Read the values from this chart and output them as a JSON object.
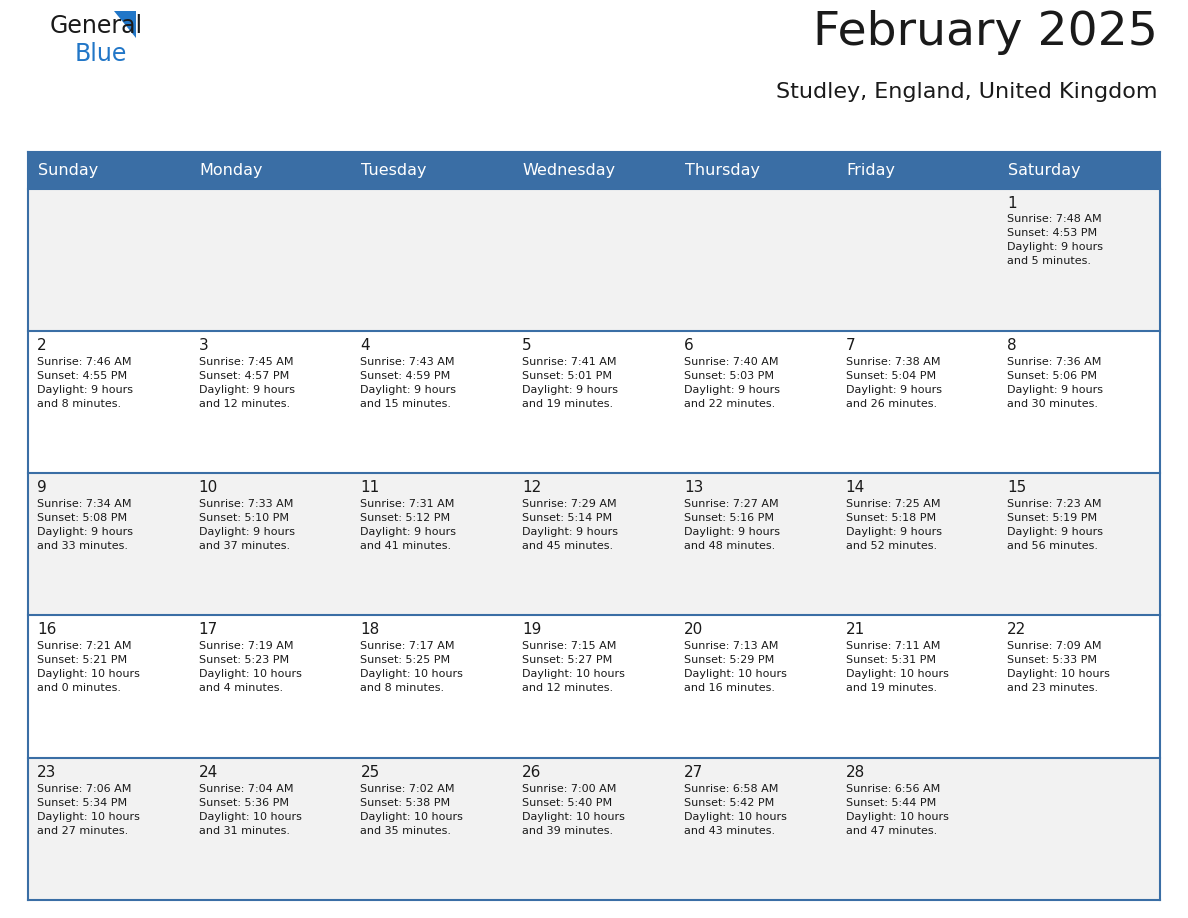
{
  "title": "February 2025",
  "subtitle": "Studley, England, United Kingdom",
  "header_bg": "#3A6EA5",
  "header_text_color": "#FFFFFF",
  "cell_bg_row0": "#F2F2F2",
  "cell_bg_row1": "#FFFFFF",
  "cell_bg_row2": "#F2F2F2",
  "cell_bg_row3": "#FFFFFF",
  "cell_bg_row4": "#F2F2F2",
  "border_color": "#3A6EA5",
  "text_color": "#1a1a1a",
  "days_of_week": [
    "Sunday",
    "Monday",
    "Tuesday",
    "Wednesday",
    "Thursday",
    "Friday",
    "Saturday"
  ],
  "calendar_data": [
    [
      {
        "day": "",
        "info": ""
      },
      {
        "day": "",
        "info": ""
      },
      {
        "day": "",
        "info": ""
      },
      {
        "day": "",
        "info": ""
      },
      {
        "day": "",
        "info": ""
      },
      {
        "day": "",
        "info": ""
      },
      {
        "day": "1",
        "info": "Sunrise: 7:48 AM\nSunset: 4:53 PM\nDaylight: 9 hours\nand 5 minutes."
      }
    ],
    [
      {
        "day": "2",
        "info": "Sunrise: 7:46 AM\nSunset: 4:55 PM\nDaylight: 9 hours\nand 8 minutes."
      },
      {
        "day": "3",
        "info": "Sunrise: 7:45 AM\nSunset: 4:57 PM\nDaylight: 9 hours\nand 12 minutes."
      },
      {
        "day": "4",
        "info": "Sunrise: 7:43 AM\nSunset: 4:59 PM\nDaylight: 9 hours\nand 15 minutes."
      },
      {
        "day": "5",
        "info": "Sunrise: 7:41 AM\nSunset: 5:01 PM\nDaylight: 9 hours\nand 19 minutes."
      },
      {
        "day": "6",
        "info": "Sunrise: 7:40 AM\nSunset: 5:03 PM\nDaylight: 9 hours\nand 22 minutes."
      },
      {
        "day": "7",
        "info": "Sunrise: 7:38 AM\nSunset: 5:04 PM\nDaylight: 9 hours\nand 26 minutes."
      },
      {
        "day": "8",
        "info": "Sunrise: 7:36 AM\nSunset: 5:06 PM\nDaylight: 9 hours\nand 30 minutes."
      }
    ],
    [
      {
        "day": "9",
        "info": "Sunrise: 7:34 AM\nSunset: 5:08 PM\nDaylight: 9 hours\nand 33 minutes."
      },
      {
        "day": "10",
        "info": "Sunrise: 7:33 AM\nSunset: 5:10 PM\nDaylight: 9 hours\nand 37 minutes."
      },
      {
        "day": "11",
        "info": "Sunrise: 7:31 AM\nSunset: 5:12 PM\nDaylight: 9 hours\nand 41 minutes."
      },
      {
        "day": "12",
        "info": "Sunrise: 7:29 AM\nSunset: 5:14 PM\nDaylight: 9 hours\nand 45 minutes."
      },
      {
        "day": "13",
        "info": "Sunrise: 7:27 AM\nSunset: 5:16 PM\nDaylight: 9 hours\nand 48 minutes."
      },
      {
        "day": "14",
        "info": "Sunrise: 7:25 AM\nSunset: 5:18 PM\nDaylight: 9 hours\nand 52 minutes."
      },
      {
        "day": "15",
        "info": "Sunrise: 7:23 AM\nSunset: 5:19 PM\nDaylight: 9 hours\nand 56 minutes."
      }
    ],
    [
      {
        "day": "16",
        "info": "Sunrise: 7:21 AM\nSunset: 5:21 PM\nDaylight: 10 hours\nand 0 minutes."
      },
      {
        "day": "17",
        "info": "Sunrise: 7:19 AM\nSunset: 5:23 PM\nDaylight: 10 hours\nand 4 minutes."
      },
      {
        "day": "18",
        "info": "Sunrise: 7:17 AM\nSunset: 5:25 PM\nDaylight: 10 hours\nand 8 minutes."
      },
      {
        "day": "19",
        "info": "Sunrise: 7:15 AM\nSunset: 5:27 PM\nDaylight: 10 hours\nand 12 minutes."
      },
      {
        "day": "20",
        "info": "Sunrise: 7:13 AM\nSunset: 5:29 PM\nDaylight: 10 hours\nand 16 minutes."
      },
      {
        "day": "21",
        "info": "Sunrise: 7:11 AM\nSunset: 5:31 PM\nDaylight: 10 hours\nand 19 minutes."
      },
      {
        "day": "22",
        "info": "Sunrise: 7:09 AM\nSunset: 5:33 PM\nDaylight: 10 hours\nand 23 minutes."
      }
    ],
    [
      {
        "day": "23",
        "info": "Sunrise: 7:06 AM\nSunset: 5:34 PM\nDaylight: 10 hours\nand 27 minutes."
      },
      {
        "day": "24",
        "info": "Sunrise: 7:04 AM\nSunset: 5:36 PM\nDaylight: 10 hours\nand 31 minutes."
      },
      {
        "day": "25",
        "info": "Sunrise: 7:02 AM\nSunset: 5:38 PM\nDaylight: 10 hours\nand 35 minutes."
      },
      {
        "day": "26",
        "info": "Sunrise: 7:00 AM\nSunset: 5:40 PM\nDaylight: 10 hours\nand 39 minutes."
      },
      {
        "day": "27",
        "info": "Sunrise: 6:58 AM\nSunset: 5:42 PM\nDaylight: 10 hours\nand 43 minutes."
      },
      {
        "day": "28",
        "info": "Sunrise: 6:56 AM\nSunset: 5:44 PM\nDaylight: 10 hours\nand 47 minutes."
      },
      {
        "day": "",
        "info": ""
      }
    ]
  ],
  "logo_color_general": "#1a1a1a",
  "logo_color_blue": "#2176C7",
  "logo_triangle_color": "#2176C7"
}
